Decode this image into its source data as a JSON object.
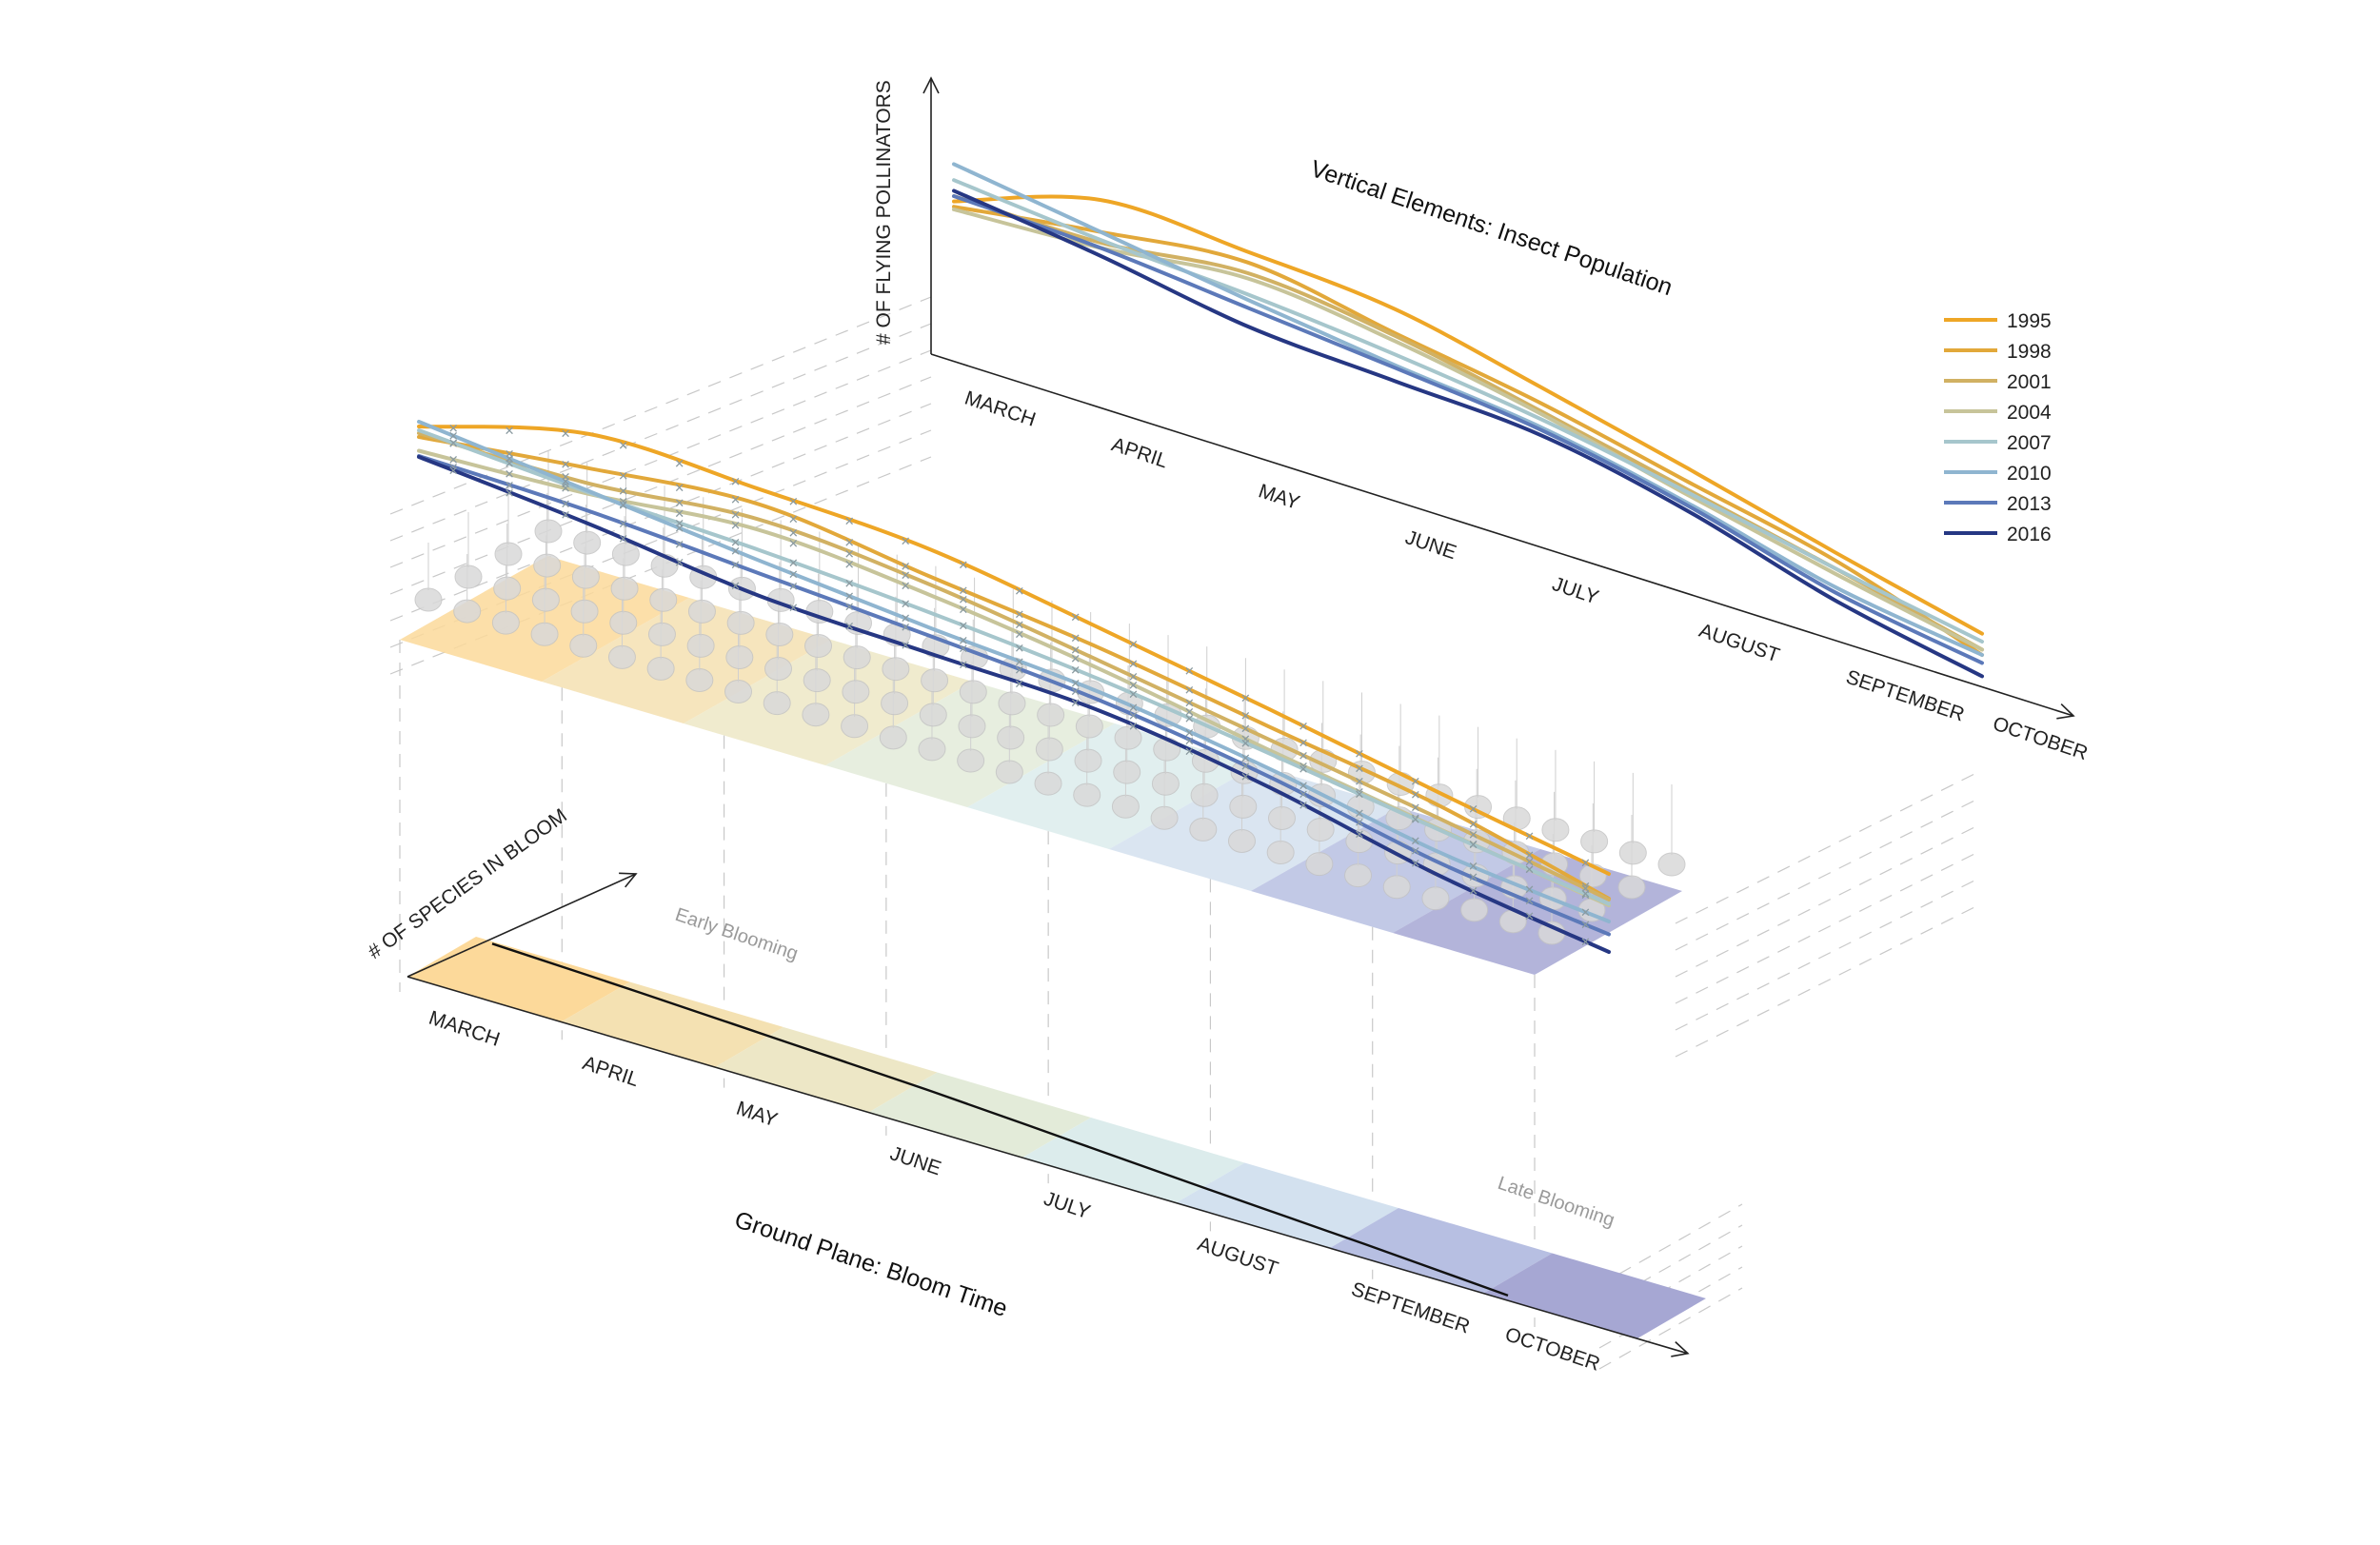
{
  "chart_data": [
    {
      "type": "line",
      "title": "Vertical Elements: Insect Population",
      "ylabel": "# OF FLYING POLLINATORS",
      "xlabel": "",
      "categories": [
        "MARCH",
        "APRIL",
        "MAY",
        "JUNE",
        "JULY",
        "AUGUST",
        "SEPTEMBER",
        "OCTOBER"
      ],
      "ylim": [
        0,
        100
      ],
      "legend_position": "right",
      "series": [
        {
          "name": "1995",
          "color": "#eea626",
          "values": [
            60,
            78,
            76,
            72,
            60,
            47,
            33,
            20
          ]
        },
        {
          "name": "1998",
          "color": "#e2a83a",
          "values": [
            58,
            66,
            72,
            63,
            54,
            42,
            30,
            12
          ]
        },
        {
          "name": "2001",
          "color": "#d1b163",
          "values": [
            62,
            62,
            68,
            62,
            51,
            39,
            27,
            14
          ]
        },
        {
          "name": "2004",
          "color": "#c7c49a",
          "values": [
            57,
            60,
            66,
            60,
            50,
            37,
            25,
            14
          ]
        },
        {
          "name": "2007",
          "color": "#a6c6cc",
          "values": [
            68,
            63,
            60,
            55,
            48,
            38,
            27,
            17
          ]
        },
        {
          "name": "2010",
          "color": "#8fb5d0",
          "values": [
            74,
            66,
            58,
            51,
            45,
            34,
            20,
            12
          ]
        },
        {
          "name": "2013",
          "color": "#5c79b9",
          "values": [
            62,
            60,
            55,
            50,
            44,
            33,
            18,
            9
          ]
        },
        {
          "name": "2016",
          "color": "#263783",
          "values": [
            64,
            57,
            48,
            45,
            42,
            31,
            15,
            4
          ]
        }
      ]
    },
    {
      "type": "area",
      "title": "Ground Plane: Bloom Time",
      "ylabel": "# OF SPECIES IN BLOOM",
      "xlabel": "",
      "categories": [
        "MARCH",
        "APRIL",
        "MAY",
        "JUNE",
        "JULY",
        "AUGUST",
        "SEPTEMBER",
        "OCTOBER"
      ],
      "ylim": [
        0,
        100
      ],
      "values": [
        100,
        90,
        78,
        66,
        50,
        34,
        19,
        2
      ],
      "band_colors": [
        "#fcd99a",
        "#f4e1b2",
        "#ede7c6",
        "#e3ebd9",
        "#dcecec",
        "#d3e1ef",
        "#b7bfe2",
        "#a6a7d3"
      ],
      "annotations": [
        "Early Blooming",
        "Late Blooming"
      ]
    }
  ]
}
